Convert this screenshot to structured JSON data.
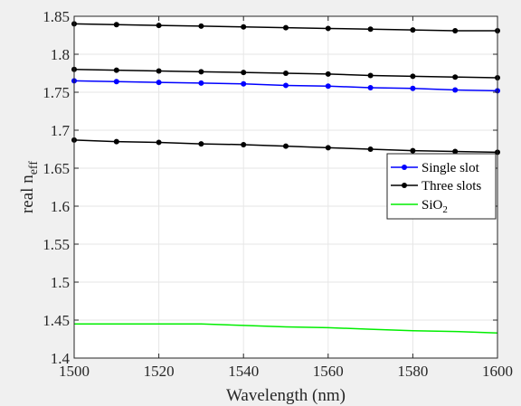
{
  "chart_data": {
    "type": "line",
    "title": "",
    "xlabel": "Wavelength (nm)",
    "ylabel_main": "real n",
    "ylabel_sub": "eff",
    "xlim": [
      1500,
      1600
    ],
    "ylim": [
      1.4,
      1.85
    ],
    "xticks": [
      1500,
      1520,
      1540,
      1560,
      1580,
      1600
    ],
    "yticks": [
      1.4,
      1.45,
      1.5,
      1.55,
      1.6,
      1.65,
      1.7,
      1.75,
      1.8,
      1.85
    ],
    "xtick_labels": [
      "1500",
      "1520",
      "1540",
      "1560",
      "1580",
      "1600"
    ],
    "ytick_labels": [
      "1.4",
      "1.45",
      "1.5",
      "1.55",
      "1.6",
      "1.65",
      "1.7",
      "1.75",
      "1.8",
      "1.85"
    ],
    "grid": true,
    "legend_position": "right",
    "legend": [
      {
        "label": "Single slot",
        "sub": "",
        "color": "#0000ff",
        "marker": true
      },
      {
        "label": "Three slots",
        "sub": "",
        "color": "#000000",
        "marker": true
      },
      {
        "label": "SiO",
        "sub": "2",
        "color": "#00ee00",
        "marker": false
      }
    ],
    "series": [
      {
        "name": "Three slots",
        "color": "#000000",
        "marker": true,
        "x": [
          1500,
          1510,
          1520,
          1530,
          1540,
          1550,
          1560,
          1570,
          1580,
          1590,
          1600
        ],
        "y": [
          1.84,
          1.839,
          1.838,
          1.837,
          1.836,
          1.835,
          1.834,
          1.833,
          1.832,
          1.831,
          1.831
        ]
      },
      {
        "name": "Three slots",
        "color": "#000000",
        "marker": true,
        "x": [
          1500,
          1510,
          1520,
          1530,
          1540,
          1550,
          1560,
          1570,
          1580,
          1590,
          1600
        ],
        "y": [
          1.78,
          1.779,
          1.778,
          1.777,
          1.776,
          1.775,
          1.774,
          1.772,
          1.771,
          1.77,
          1.769
        ]
      },
      {
        "name": "Single slot",
        "color": "#0000ff",
        "marker": true,
        "x": [
          1500,
          1510,
          1520,
          1530,
          1540,
          1550,
          1560,
          1570,
          1580,
          1590,
          1600
        ],
        "y": [
          1.765,
          1.764,
          1.763,
          1.762,
          1.761,
          1.759,
          1.758,
          1.756,
          1.755,
          1.753,
          1.752
        ]
      },
      {
        "name": "Three slots",
        "color": "#000000",
        "marker": true,
        "x": [
          1500,
          1510,
          1520,
          1530,
          1540,
          1550,
          1560,
          1570,
          1580,
          1590,
          1600
        ],
        "y": [
          1.687,
          1.685,
          1.684,
          1.682,
          1.681,
          1.679,
          1.677,
          1.675,
          1.673,
          1.672,
          1.671
        ]
      },
      {
        "name": "SiO2",
        "color": "#00ee00",
        "marker": false,
        "x": [
          1500,
          1530,
          1540,
          1550,
          1560,
          1570,
          1580,
          1590,
          1600
        ],
        "y": [
          1.445,
          1.445,
          1.443,
          1.441,
          1.44,
          1.438,
          1.436,
          1.435,
          1.433
        ]
      }
    ]
  }
}
